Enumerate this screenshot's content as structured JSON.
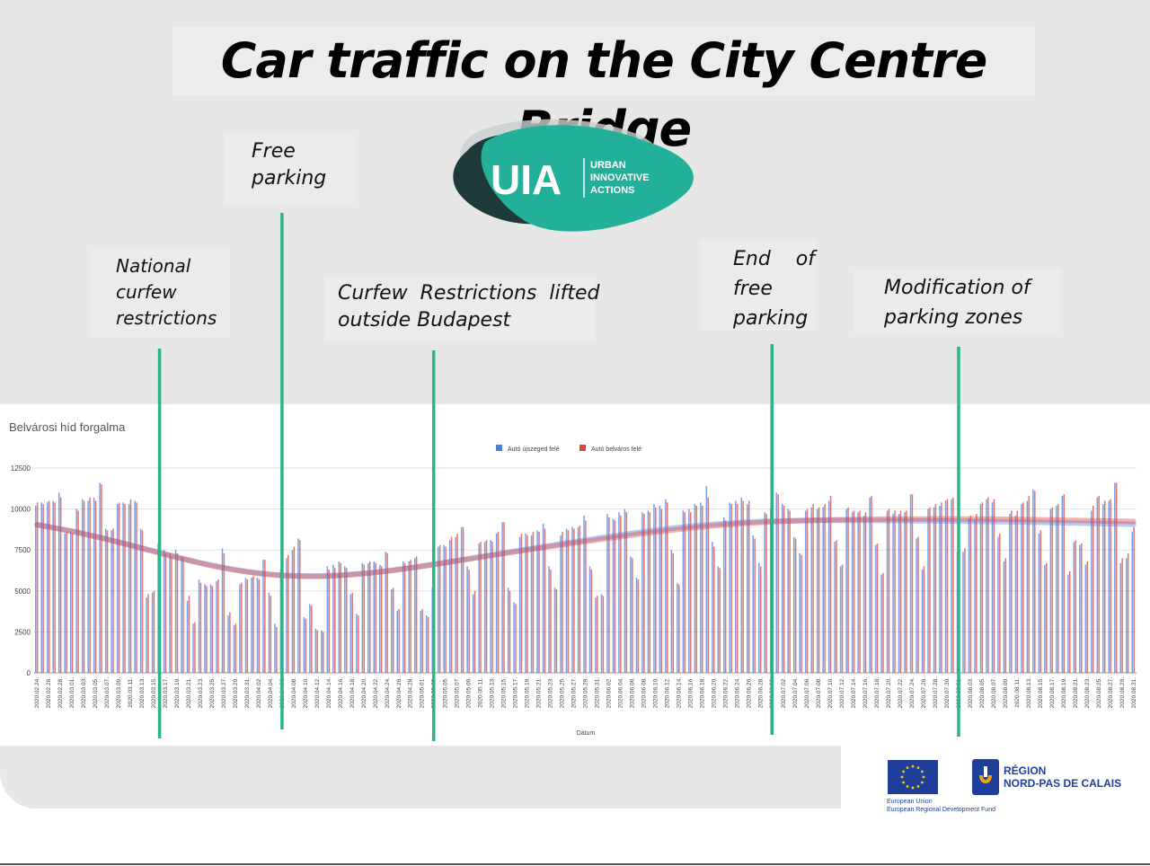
{
  "slide": {
    "title": "Car traffic on the City Centre Bridge",
    "annotations": [
      {
        "id": "national-curfew",
        "lines": [
          "National",
          "curfew",
          "restrictions"
        ],
        "date": "2020.03.16."
      },
      {
        "id": "free-parking",
        "lines": [
          "Free",
          "parking"
        ],
        "date": "2020.04.06."
      },
      {
        "id": "curfew-lifted",
        "lines": [
          "Curfew  Restrictions  lifted",
          "outside Budapest"
        ],
        "date": "2020.05.03."
      },
      {
        "id": "end-free-parking",
        "lines": [
          "End    of",
          "free",
          "parking"
        ],
        "date": "2020.06.30."
      },
      {
        "id": "parking-zones",
        "lines": [
          "Modification of",
          "parking zones"
        ],
        "date": "2020.08.01."
      }
    ],
    "event_line_color": "#2db38a",
    "logos": {
      "uia": {
        "main": "UIA",
        "sub": [
          "URBAN",
          "INNOVATIVE",
          "ACTIONS"
        ]
      },
      "eu": {
        "lines": [
          "European Union",
          "European Regional Development Fund"
        ]
      },
      "region": {
        "lines": [
          "RÉGION",
          "NORD-PAS DE CALAIS"
        ]
      }
    }
  },
  "chart_data": {
    "type": "bar",
    "title": "Belvárosi híd forgalma",
    "xlabel": "Dátum",
    "ylabel": "",
    "ylim": [
      0,
      12500
    ],
    "yticks": [
      "0",
      "2500",
      "5000",
      "7500",
      "10000",
      "12500"
    ],
    "grid": true,
    "legend_position": "top-center",
    "trendlines": true,
    "xtick_labels": [
      "2020.02.24.",
      "2020.02.26.",
      "2020.02.28.",
      "2020.03.01.",
      "2020.03.03.",
      "2020.03.05.",
      "2020.03.07.",
      "2020.03.09.",
      "2020.03.11.",
      "2020.03.13.",
      "2020.03.15.",
      "2020.03.17.",
      "2020.03.19.",
      "2020.03.21.",
      "2020.03.23.",
      "2020.03.25.",
      "2020.03.27.",
      "2020.03.29.",
      "2020.03.31.",
      "2020.04.02.",
      "2020.04.04.",
      "2020.04.06.",
      "2020.04.08.",
      "2020.04.10.",
      "2020.04.12.",
      "2020.04.14.",
      "2020.04.16.",
      "2020.04.18.",
      "2020.04.20.",
      "2020.04.22.",
      "2020.04.24.",
      "2020.04.26.",
      "2020.04.28.",
      "2020.05.01.",
      "2020.05.03.",
      "2020.05.05.",
      "2020.05.07.",
      "2020.05.09.",
      "2020.05.11.",
      "2020.05.13.",
      "2020.05.15.",
      "2020.05.17.",
      "2020.05.19.",
      "2020.05.21.",
      "2020.05.23.",
      "2020.05.25.",
      "2020.05.27.",
      "2020.05.29.",
      "2020.05.31.",
      "2020.06.02.",
      "2020.06.04.",
      "2020.06.06.",
      "2020.06.08.",
      "2020.06.10.",
      "2020.06.12.",
      "2020.06.14.",
      "2020.06.16.",
      "2020.06.18.",
      "2020.06.20.",
      "2020.06.22.",
      "2020.06.24.",
      "2020.06.26.",
      "2020.06.28.",
      "2020.06.30.",
      "2020.07.02.",
      "2020.07.04.",
      "2020.07.06.",
      "2020.07.08.",
      "2020.07.10.",
      "2020.07.12.",
      "2020.07.14.",
      "2020.07.16.",
      "2020.07.18.",
      "2020.07.20.",
      "2020.07.22.",
      "2020.07.24.",
      "2020.07.26.",
      "2020.07.28.",
      "2020.07.30.",
      "2020.08.01.",
      "2020.08.03.",
      "2020.08.05.",
      "2020.08.07.",
      "2020.08.09.",
      "2020.08.11.",
      "2020.08.13.",
      "2020.08.15.",
      "2020.08.17.",
      "2020.08.19.",
      "2020.08.21.",
      "2020.08.23.",
      "2020.08.25.",
      "2020.08.27.",
      "2020.08.29.",
      "2020.08.31."
    ],
    "series": [
      {
        "name": "Autó újszeged felé",
        "color": "#4a7fe0",
        "values": [
          10200,
          10400,
          10400,
          10500,
          11000,
          8500,
          8600,
          10000,
          10600,
          10500,
          10700,
          11600,
          8800,
          8700,
          10300,
          10400,
          10300,
          10500,
          8800,
          4600,
          4900,
          7900,
          7500,
          7300,
          7500,
          7100,
          4400,
          3000,
          5700,
          5400,
          5400,
          5600,
          7600,
          3500,
          2900,
          5400,
          5800,
          5800,
          5800,
          6900,
          4900,
          3000,
          6300,
          7000,
          7500,
          8200,
          3400,
          4200,
          2700,
          2600,
          6500,
          6600,
          6800,
          6500,
          4800,
          3600,
          6700,
          6700,
          6800,
          6600,
          7400,
          5100,
          3800,
          6800,
          6800,
          7000,
          3800,
          3500,
          5200,
          7700,
          7800,
          8100,
          8300,
          8900,
          6500,
          4800,
          7900,
          8000,
          8100,
          8500,
          9200,
          5200,
          4300,
          8300,
          8500,
          8400,
          8700,
          9100,
          6500,
          5200,
          8400,
          8800,
          8900,
          8900,
          9600,
          6500,
          4600,
          4800,
          9700,
          9400,
          9800,
          10000,
          7100,
          5800,
          9800,
          9900,
          10300,
          10200,
          10600,
          7500,
          5500,
          9900,
          10000,
          10300,
          10400,
          11400,
          8000,
          6500,
          9500,
          10400,
          10500,
          10700,
          10300,
          8400,
          6700,
          9800,
          10000,
          11000,
          10300,
          10000,
          8300,
          7300,
          9900,
          10100,
          10000,
          10100,
          10500,
          8000,
          6500,
          10000,
          9800,
          9800,
          9600,
          10700,
          7800,
          6000,
          9900,
          9700,
          9700,
          9800,
          10900,
          8200,
          6300,
          10000,
          10100,
          10200,
          10500,
          10600,
          7400,
          7400,
          9400,
          9300,
          10300,
          10600,
          10400,
          8300,
          6800,
          9700,
          9600,
          10300,
          10500,
          11200,
          8500,
          6600,
          10000,
          10200,
          10800,
          6000,
          8000,
          7800,
          6600,
          9900,
          10700,
          10300,
          10500,
          11600,
          6700,
          7000,
          8600
        ]
      },
      {
        "name": "Autó belváros felé",
        "color": "#e0443c",
        "values": [
          10400,
          10300,
          10500,
          10400,
          10700,
          8600,
          8500,
          9900,
          10500,
          10700,
          10500,
          11500,
          8700,
          8800,
          10400,
          10300,
          10600,
          10400,
          8700,
          4800,
          5000,
          7600,
          7300,
          7100,
          7300,
          7000,
          4700,
          3100,
          5500,
          5300,
          5300,
          5700,
          7300,
          3700,
          3000,
          5500,
          5700,
          5900,
          5700,
          6900,
          4700,
          2800,
          6500,
          7200,
          7700,
          8100,
          3300,
          4100,
          2600,
          2500,
          6300,
          6400,
          6700,
          6400,
          4900,
          3500,
          6600,
          6800,
          6700,
          6500,
          7300,
          5200,
          3900,
          6700,
          6900,
          7100,
          3900,
          3400,
          5000,
          7800,
          7700,
          8300,
          8500,
          8900,
          6300,
          5000,
          8000,
          8100,
          8000,
          8600,
          9200,
          5000,
          4200,
          8500,
          8400,
          8600,
          8600,
          8800,
          6300,
          5100,
          8600,
          8700,
          8800,
          9000,
          9300,
          6300,
          4700,
          4700,
          9500,
          9300,
          9600,
          9800,
          7000,
          5700,
          9700,
          9800,
          10100,
          10000,
          10400,
          7300,
          5400,
          9800,
          9800,
          10200,
          10200,
          10700,
          7700,
          6400,
          9300,
          10300,
          10300,
          10500,
          10500,
          8200,
          6500,
          9700,
          9800,
          10900,
          10200,
          9900,
          8200,
          7200,
          10000,
          10300,
          10100,
          10300,
          10800,
          8100,
          6600,
          10100,
          9900,
          9900,
          9800,
          10800,
          7900,
          6100,
          10000,
          9900,
          9900,
          9900,
          10900,
          8300,
          6500,
          10100,
          10300,
          10400,
          10600,
          10700,
          7500,
          7600,
          9600,
          9700,
          10400,
          10700,
          10600,
          8500,
          7000,
          9900,
          9900,
          10400,
          10800,
          11100,
          8700,
          6700,
          10100,
          10300,
          10900,
          6200,
          8100,
          7900,
          6800,
          10200,
          10800,
          10500,
          10600,
          11600,
          7000,
          7300,
          8900
        ]
      }
    ]
  }
}
